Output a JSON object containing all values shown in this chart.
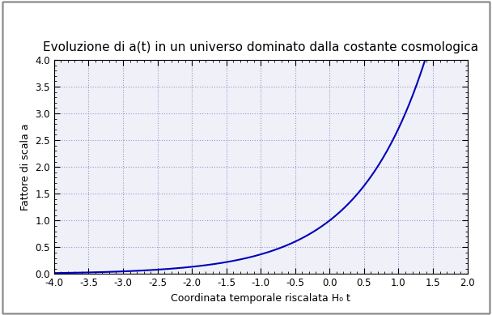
{
  "title": "Evoluzione di a(t) in un universo dominato dalla costante cosmologica",
  "xlabel": "Coordinata temporale riscalata H₀ t",
  "ylabel": "Fattore di scala a",
  "xlim": [
    -4.0,
    2.0
  ],
  "ylim": [
    0.0,
    4.0
  ],
  "xticks": [
    -4.0,
    -3.5,
    -3.0,
    -2.5,
    -2.0,
    -1.5,
    -1.0,
    -0.5,
    0.0,
    0.5,
    1.0,
    1.5,
    2.0
  ],
  "yticks": [
    0.0,
    0.5,
    1.0,
    1.5,
    2.0,
    2.5,
    3.0,
    3.5,
    4.0
  ],
  "xtick_labels": [
    "-4.0",
    "-3.5",
    "-3.0",
    "-2.5",
    "-2.0",
    "-1.5",
    "-1.0",
    "-0.5",
    "0.0",
    "0.5",
    "1.0",
    "1.5",
    "2.0"
  ],
  "ytick_labels": [
    "0.0",
    "0.5",
    "1.0",
    "1.5",
    "2.0",
    "2.5",
    "3.0",
    "3.5",
    "4.0"
  ],
  "line_color": "#0000bb",
  "line_width": 1.5,
  "background_color": "#ffffff",
  "plot_bg_color": "#f0f0f8",
  "grid_color": "#9999cc",
  "outer_border_color": "#888888",
  "title_fontsize": 11,
  "label_fontsize": 9,
  "tick_fontsize": 8.5,
  "minor_ticks_per_major": 5,
  "fig_width": 6.08,
  "fig_height": 3.89,
  "dpi": 100
}
